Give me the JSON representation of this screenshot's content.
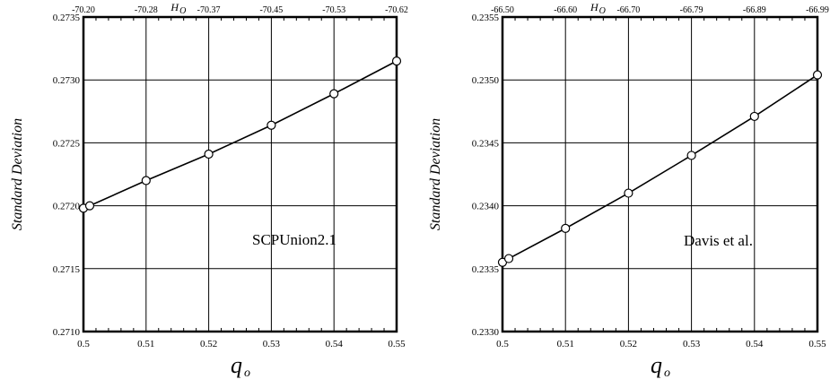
{
  "chart_data": [
    {
      "type": "line",
      "annotation": "SCPUnion2.1",
      "xlabel": "q",
      "xlabel_sub": "o",
      "ylabel": "Standard Deviation",
      "top_axis_label": "H",
      "top_axis_label_sub": "O",
      "xlim": [
        0.5,
        0.55
      ],
      "ylim": [
        0.271,
        0.2735
      ],
      "grid": true,
      "x_ticks": [
        "0.5",
        "0.51",
        "0.52",
        "0.53",
        "0.54",
        "0.55"
      ],
      "y_ticks": [
        "0.2710",
        "0.2715",
        "0.2720",
        "0.2725",
        "0.2730",
        "0.2735"
      ],
      "top_ticks": [
        "-70.20",
        "-70.28",
        "-70.37",
        "-70.45",
        "-70.53",
        "-70.62"
      ],
      "series": [
        {
          "x": [
            0.5,
            0.501,
            0.51,
            0.52,
            0.53,
            0.54,
            0.55
          ],
          "y": [
            0.27198,
            0.272,
            0.2722,
            0.27241,
            0.27264,
            0.27289,
            0.27315
          ]
        }
      ]
    },
    {
      "type": "line",
      "annotation": "Davis et al.",
      "xlabel": "q",
      "xlabel_sub": "o",
      "ylabel": "Standard Deviation",
      "top_axis_label": "H",
      "top_axis_label_sub": "O",
      "xlim": [
        0.5,
        0.55
      ],
      "ylim": [
        0.233,
        0.2355
      ],
      "grid": true,
      "x_ticks": [
        "0.5",
        "0.51",
        "0.52",
        "0.53",
        "0.54",
        "0.55"
      ],
      "y_ticks": [
        "0.2330",
        "0.2335",
        "0.2340",
        "0.2345",
        "0.2350",
        "0.2355"
      ],
      "top_ticks": [
        "-66.50",
        "-66.60",
        "-66.70",
        "-66.79",
        "-66.89",
        "-66.99"
      ],
      "series": [
        {
          "x": [
            0.5,
            0.501,
            0.51,
            0.52,
            0.53,
            0.54,
            0.55
          ],
          "y": [
            0.23355,
            0.23358,
            0.23382,
            0.2341,
            0.2344,
            0.23471,
            0.23504
          ]
        }
      ]
    }
  ]
}
